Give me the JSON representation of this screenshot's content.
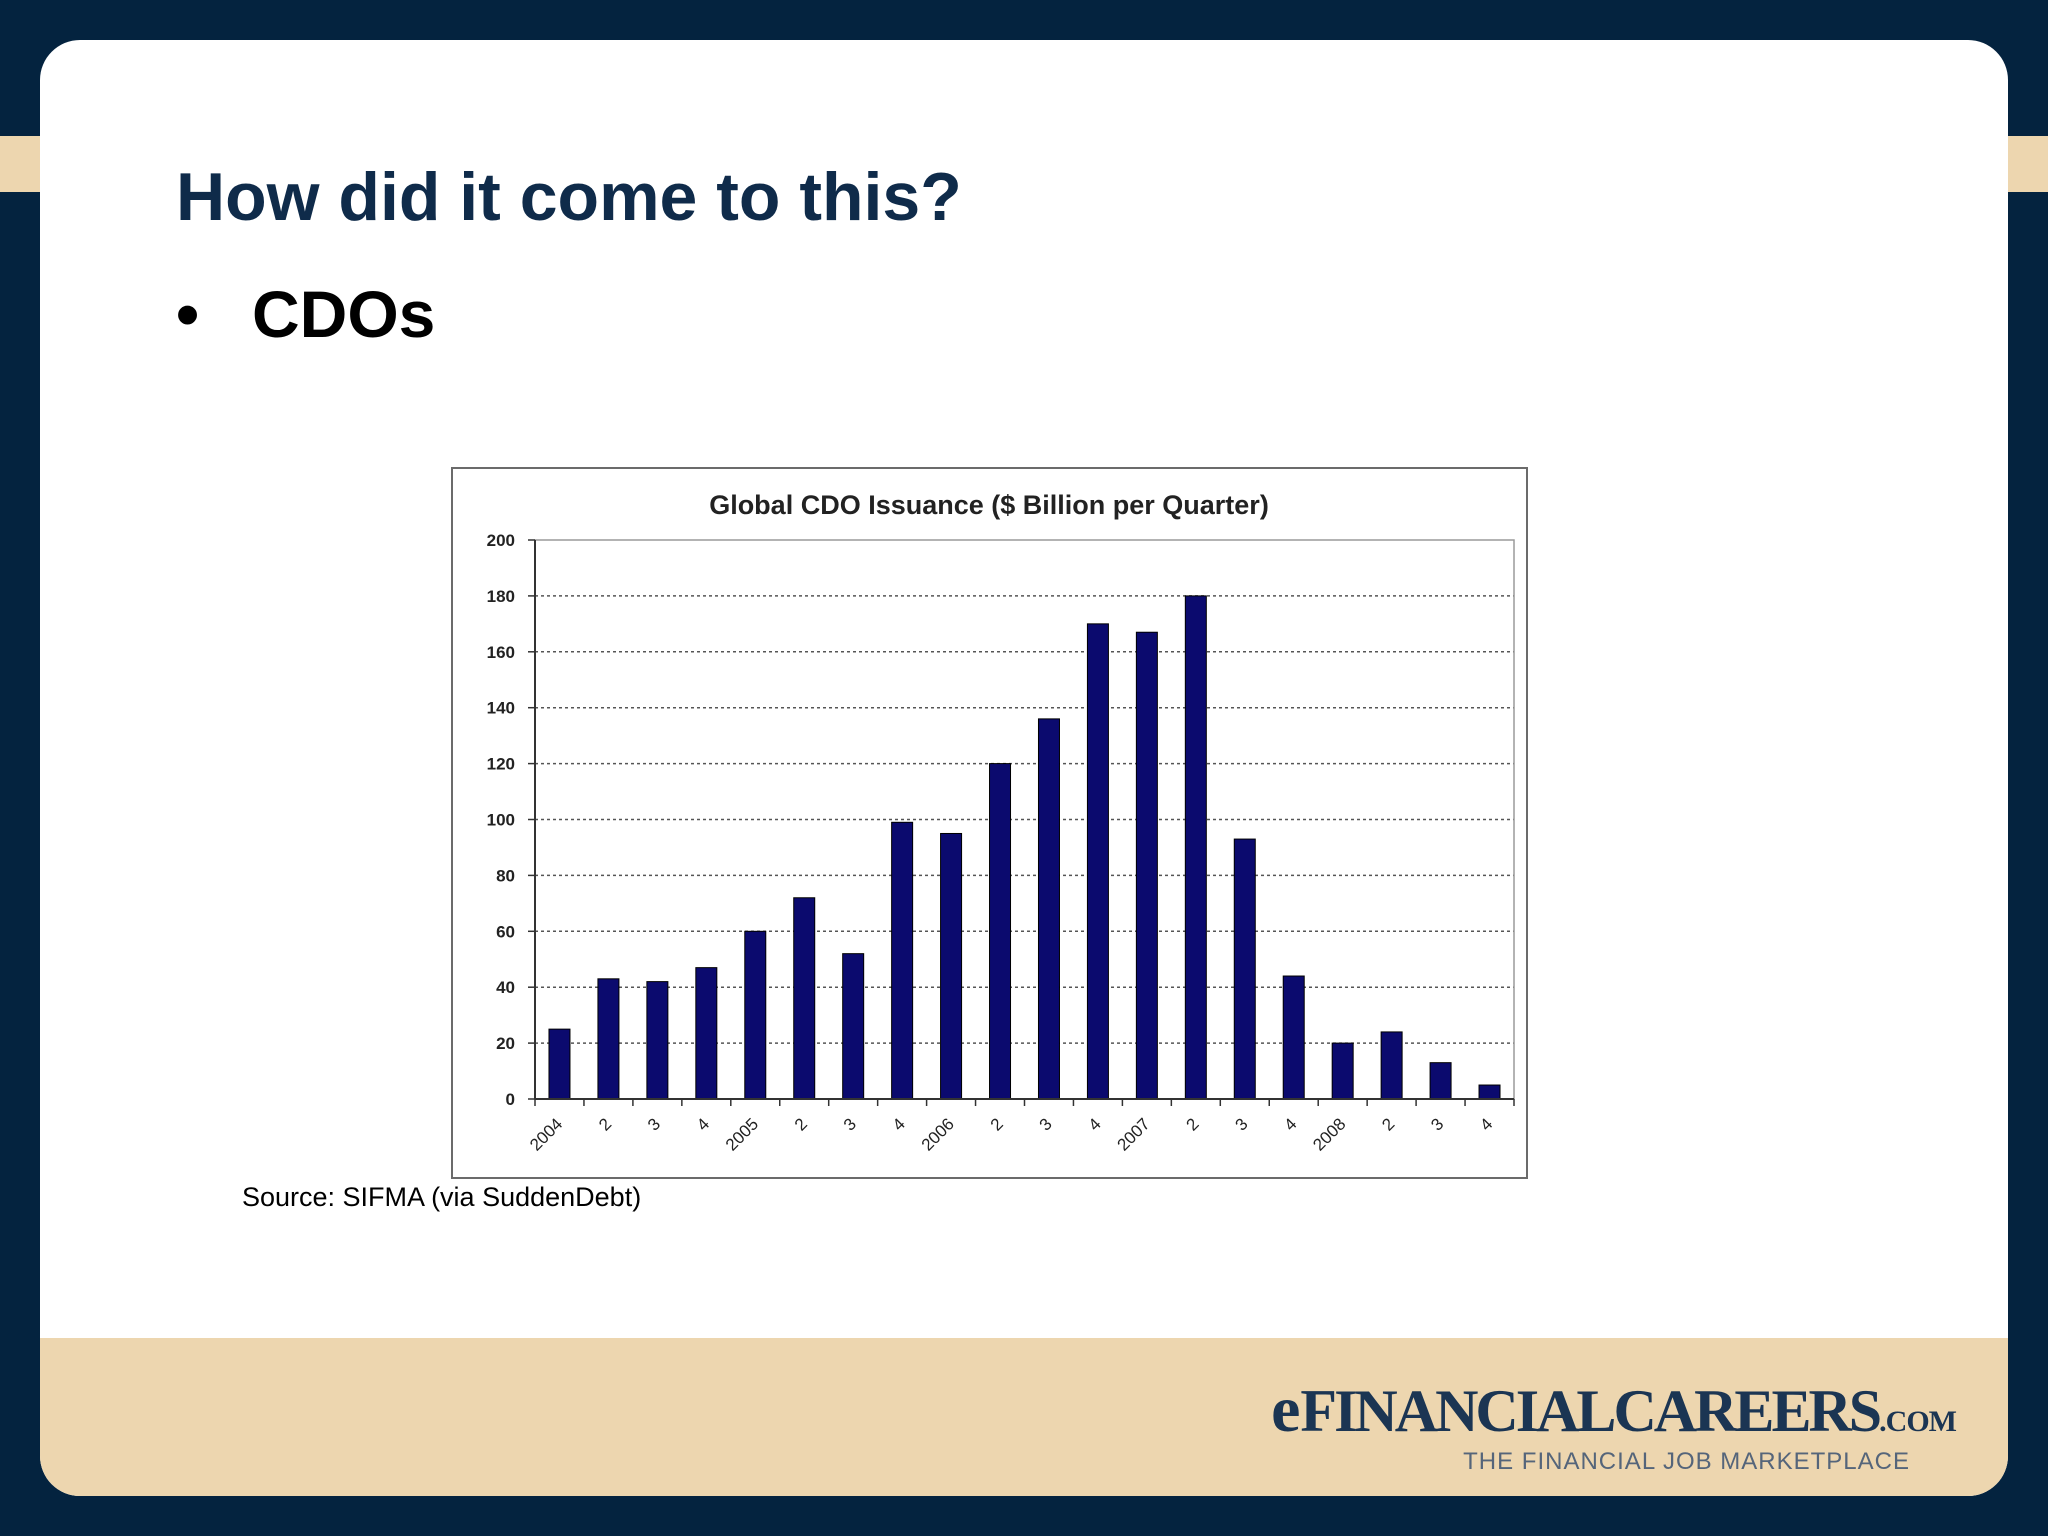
{
  "slide": {
    "title": "How did it come to this?",
    "bullet_marker": "•",
    "bullet": "CDOs",
    "source": "Source: SIFMA (via SuddenDebt)"
  },
  "logo": {
    "e": "e",
    "main": "FINANCIALCAREERS",
    "com": ".COM",
    "tagline": "THE FINANCIAL JOB MARKETPLACE"
  },
  "colors": {
    "frame": "#04233f",
    "accent_band": "#edd6af",
    "title": "#0f2b4a",
    "bar": "#0b0a6e"
  },
  "chart_data": {
    "type": "bar",
    "title": "Global CDO Issuance ($ Billion per Quarter)",
    "categories": [
      "2004",
      "2",
      "3",
      "4",
      "2005",
      "2",
      "3",
      "4",
      "2006",
      "2",
      "3",
      "4",
      "2007",
      "2",
      "3",
      "4",
      "2008",
      "2",
      "3",
      "4"
    ],
    "values": [
      25,
      43,
      42,
      47,
      60,
      72,
      52,
      99,
      95,
      120,
      136,
      170,
      167,
      180,
      93,
      44,
      20,
      24,
      13,
      5
    ],
    "ylim": [
      0,
      200
    ],
    "yticks": [
      0,
      20,
      40,
      60,
      80,
      100,
      120,
      140,
      160,
      180,
      200
    ],
    "grid": true,
    "xlabel": "",
    "ylabel": ""
  }
}
